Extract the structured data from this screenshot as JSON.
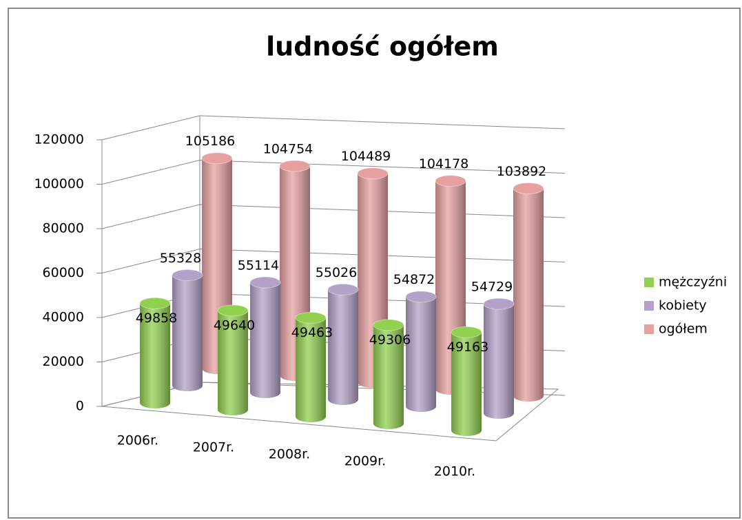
{
  "chart_data": {
    "type": "bar3d",
    "title": "ludność ogółem",
    "categories": [
      "2006r.",
      "2007r.",
      "2008r.",
      "2009r.",
      "2010r."
    ],
    "series": [
      {
        "name": "mężczyźni",
        "color": "#92d050",
        "values": [
          49858,
          49640,
          49463,
          49306,
          49163
        ]
      },
      {
        "name": "kobiety",
        "color": "#b3a2c7",
        "values": [
          55328,
          55114,
          55026,
          54872,
          54729
        ]
      },
      {
        "name": "ogółem",
        "color": "#e6a0a0",
        "values": [
          105186,
          104754,
          104489,
          104178,
          103892
        ]
      }
    ],
    "ylim": [
      0,
      120000
    ],
    "yticks": [
      0,
      20000,
      40000,
      60000,
      80000,
      100000,
      120000
    ],
    "grid": true,
    "legend": "right"
  }
}
